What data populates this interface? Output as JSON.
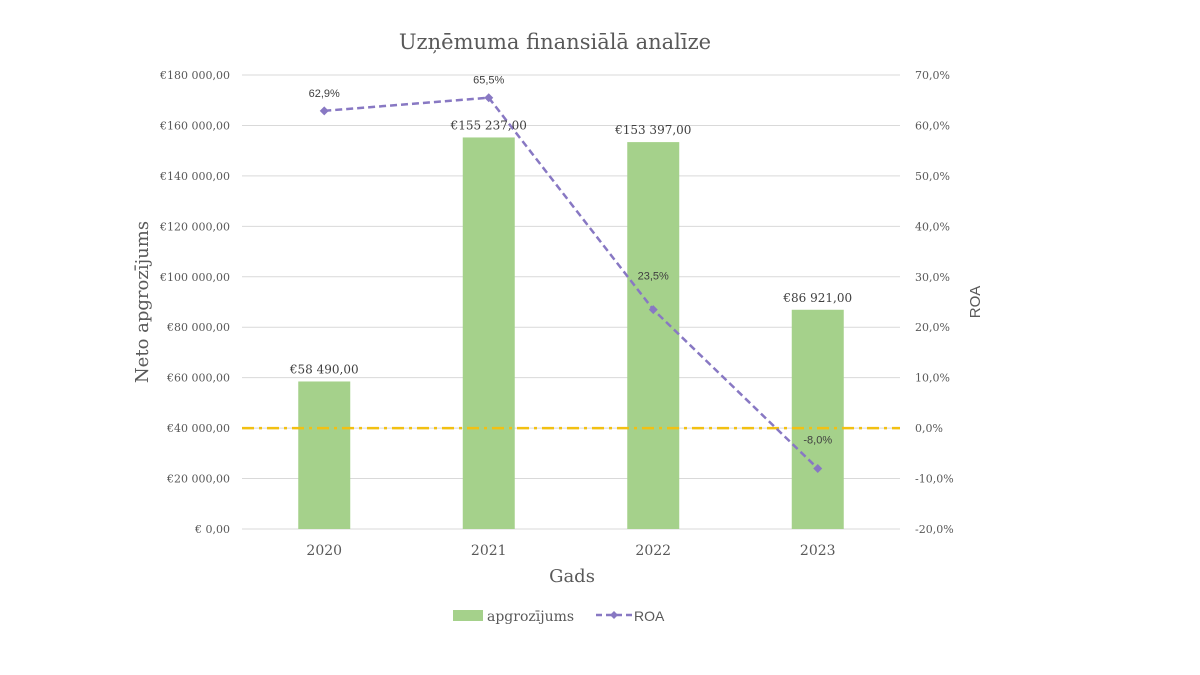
{
  "chart_data": {
    "type": "bar",
    "title": "Uzņēmuma finansiālā analīze",
    "xlabel": "Gads",
    "ylabel": "Neto apgrozījums",
    "y2label": "ROA",
    "categories": [
      "2020",
      "2021",
      "2022",
      "2023"
    ],
    "ylim": [
      0,
      180000
    ],
    "y2lim": [
      -20,
      70
    ],
    "y_ticks": [
      "€ 0,00",
      "€20 000,00",
      "€40 000,00",
      "€60 000,00",
      "€80 000,00",
      "€100 000,00",
      "€120 000,00",
      "€140 000,00",
      "€160 000,00",
      "€180 000,00"
    ],
    "y2_ticks": [
      "-20,0%",
      "-10,0%",
      "0,0%",
      "10,0%",
      "20,0%",
      "30,0%",
      "40,0%",
      "50,0%",
      "60,0%",
      "70,0%"
    ],
    "series": [
      {
        "name": "apgrozījums",
        "type": "bar",
        "axis": "left",
        "color": "#a5d18b",
        "values": [
          58490,
          155237,
          153397,
          86921
        ],
        "labels": [
          "€58 490,00",
          "€155 237,00",
          "€153 397,00",
          "€86 921,00"
        ]
      },
      {
        "name": "ROA",
        "type": "line",
        "axis": "right",
        "style": "dashed",
        "color": "#8878c3",
        "values": [
          62.9,
          65.5,
          23.5,
          -8.0
        ],
        "labels": [
          "62,9%",
          "65,5%",
          "23,5%",
          "-8,0%"
        ]
      }
    ],
    "reference_line": {
      "axis": "right",
      "value": 0,
      "color": "#f2c012",
      "style": "dash-dot"
    },
    "grid": true,
    "legend_position": "bottom"
  }
}
